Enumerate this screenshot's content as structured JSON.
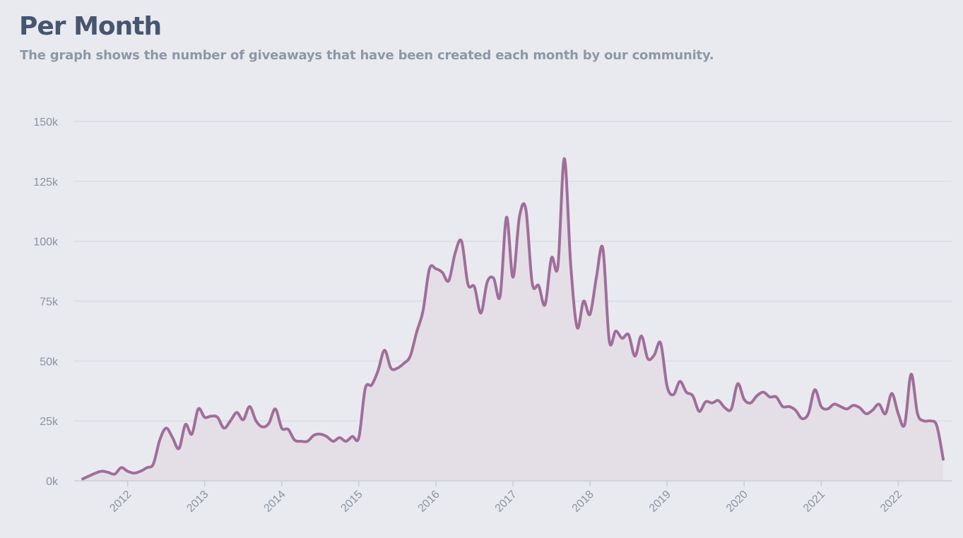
{
  "header": {
    "title": "Per Month",
    "subtitle": "The graph shows the number of giveaways that have been created each month by our community."
  },
  "colors": {
    "background": "#e9eaef",
    "line": "#a06e9a",
    "area": "#e4dfe6",
    "grid": "#d6d8e1",
    "axis_text": "#8a93a2",
    "title": "#465670",
    "subtitle": "#8d97a6"
  },
  "chart_data": {
    "type": "area",
    "title": "Per Month",
    "subtitle": "The graph shows the number of giveaways that have been created each month by our community.",
    "xlabel": "",
    "ylabel": "",
    "ylim": [
      0,
      150000
    ],
    "xlim": [
      "2011-06",
      "2022-08"
    ],
    "grid": true,
    "legend": "none",
    "y_ticks": [
      {
        "value": 0,
        "label": "0k"
      },
      {
        "value": 25000,
        "label": "25k"
      },
      {
        "value": 50000,
        "label": "50k"
      },
      {
        "value": 75000,
        "label": "75k"
      },
      {
        "value": 100000,
        "label": "100k"
      },
      {
        "value": 125000,
        "label": "125k"
      },
      {
        "value": 150000,
        "label": "150k"
      }
    ],
    "x_ticks": [
      {
        "value": "2012-01",
        "label": "2012"
      },
      {
        "value": "2013-01",
        "label": "2013"
      },
      {
        "value": "2014-01",
        "label": "2014"
      },
      {
        "value": "2015-01",
        "label": "2015"
      },
      {
        "value": "2016-01",
        "label": "2016"
      },
      {
        "value": "2017-01",
        "label": "2017"
      },
      {
        "value": "2018-01",
        "label": "2018"
      },
      {
        "value": "2019-01",
        "label": "2019"
      },
      {
        "value": "2020-01",
        "label": "2020"
      },
      {
        "value": "2021-01",
        "label": "2021"
      },
      {
        "value": "2022-01",
        "label": "2022"
      }
    ],
    "x": [
      "2011-06",
      "2011-07",
      "2011-08",
      "2011-09",
      "2011-10",
      "2011-11",
      "2011-12",
      "2012-01",
      "2012-02",
      "2012-03",
      "2012-04",
      "2012-05",
      "2012-06",
      "2012-07",
      "2012-08",
      "2012-09",
      "2012-10",
      "2012-11",
      "2012-12",
      "2013-01",
      "2013-02",
      "2013-03",
      "2013-04",
      "2013-05",
      "2013-06",
      "2013-07",
      "2013-08",
      "2013-09",
      "2013-10",
      "2013-11",
      "2013-12",
      "2014-01",
      "2014-02",
      "2014-03",
      "2014-04",
      "2014-05",
      "2014-06",
      "2014-07",
      "2014-08",
      "2014-09",
      "2014-10",
      "2014-11",
      "2014-12",
      "2015-01",
      "2015-02",
      "2015-03",
      "2015-04",
      "2015-05",
      "2015-06",
      "2015-07",
      "2015-08",
      "2015-09",
      "2015-10",
      "2015-11",
      "2015-12",
      "2016-01",
      "2016-02",
      "2016-03",
      "2016-04",
      "2016-05",
      "2016-06",
      "2016-07",
      "2016-08",
      "2016-09",
      "2016-10",
      "2016-11",
      "2016-12",
      "2017-01",
      "2017-02",
      "2017-03",
      "2017-04",
      "2017-05",
      "2017-06",
      "2017-07",
      "2017-08",
      "2017-09",
      "2017-10",
      "2017-11",
      "2017-12",
      "2018-01",
      "2018-02",
      "2018-03",
      "2018-04",
      "2018-05",
      "2018-06",
      "2018-07",
      "2018-08",
      "2018-09",
      "2018-10",
      "2018-11",
      "2018-12",
      "2019-01",
      "2019-02",
      "2019-03",
      "2019-04",
      "2019-05",
      "2019-06",
      "2019-07",
      "2019-08",
      "2019-09",
      "2019-10",
      "2019-11",
      "2019-12",
      "2020-01",
      "2020-02",
      "2020-03",
      "2020-04",
      "2020-05",
      "2020-06",
      "2020-07",
      "2020-08",
      "2020-09",
      "2020-10",
      "2020-11",
      "2020-12",
      "2021-01",
      "2021-02",
      "2021-03",
      "2021-04",
      "2021-05",
      "2021-06",
      "2021-07",
      "2021-08",
      "2021-09",
      "2021-10",
      "2021-11",
      "2021-12",
      "2022-01",
      "2022-02",
      "2022-03",
      "2022-04",
      "2022-05",
      "2022-06",
      "2022-07",
      "2022-08"
    ],
    "series": [
      {
        "values": [
          800,
          2000,
          3200,
          4000,
          3500,
          2800,
          5500,
          4000,
          3200,
          4000,
          5500,
          7000,
          17000,
          22000,
          18000,
          13500,
          23500,
          19500,
          30000,
          26500,
          27000,
          26500,
          22000,
          25000,
          28500,
          25500,
          31000,
          25000,
          22500,
          24000,
          30000,
          22000,
          21500,
          17000,
          16500,
          16500,
          19000,
          19500,
          18500,
          16500,
          18000,
          16500,
          18500,
          18000,
          38500,
          40000,
          46000,
          54500,
          47000,
          47000,
          49000,
          52000,
          62000,
          71000,
          88500,
          88500,
          87000,
          83500,
          95000,
          100000,
          82000,
          81000,
          70000,
          83000,
          84500,
          77000,
          110000,
          85000,
          110000,
          113500,
          82500,
          81500,
          73500,
          93000,
          89500,
          134500,
          90000,
          64000,
          75000,
          69500,
          85000,
          97000,
          58500,
          62500,
          59500,
          61000,
          52000,
          60500,
          51000,
          52500,
          57500,
          39500,
          36000,
          41500,
          37000,
          35500,
          29000,
          33000,
          32500,
          33500,
          30500,
          30000,
          40500,
          34000,
          32500,
          35500,
          37000,
          35000,
          35000,
          31000,
          31000,
          29500,
          26000,
          28000,
          38000,
          31000,
          30000,
          32000,
          31000,
          30000,
          31500,
          30500,
          28000,
          29500,
          32000,
          28000,
          36500,
          28000,
          23500,
          44500,
          28000,
          25000,
          25000,
          23000,
          9000
        ]
      }
    ]
  }
}
